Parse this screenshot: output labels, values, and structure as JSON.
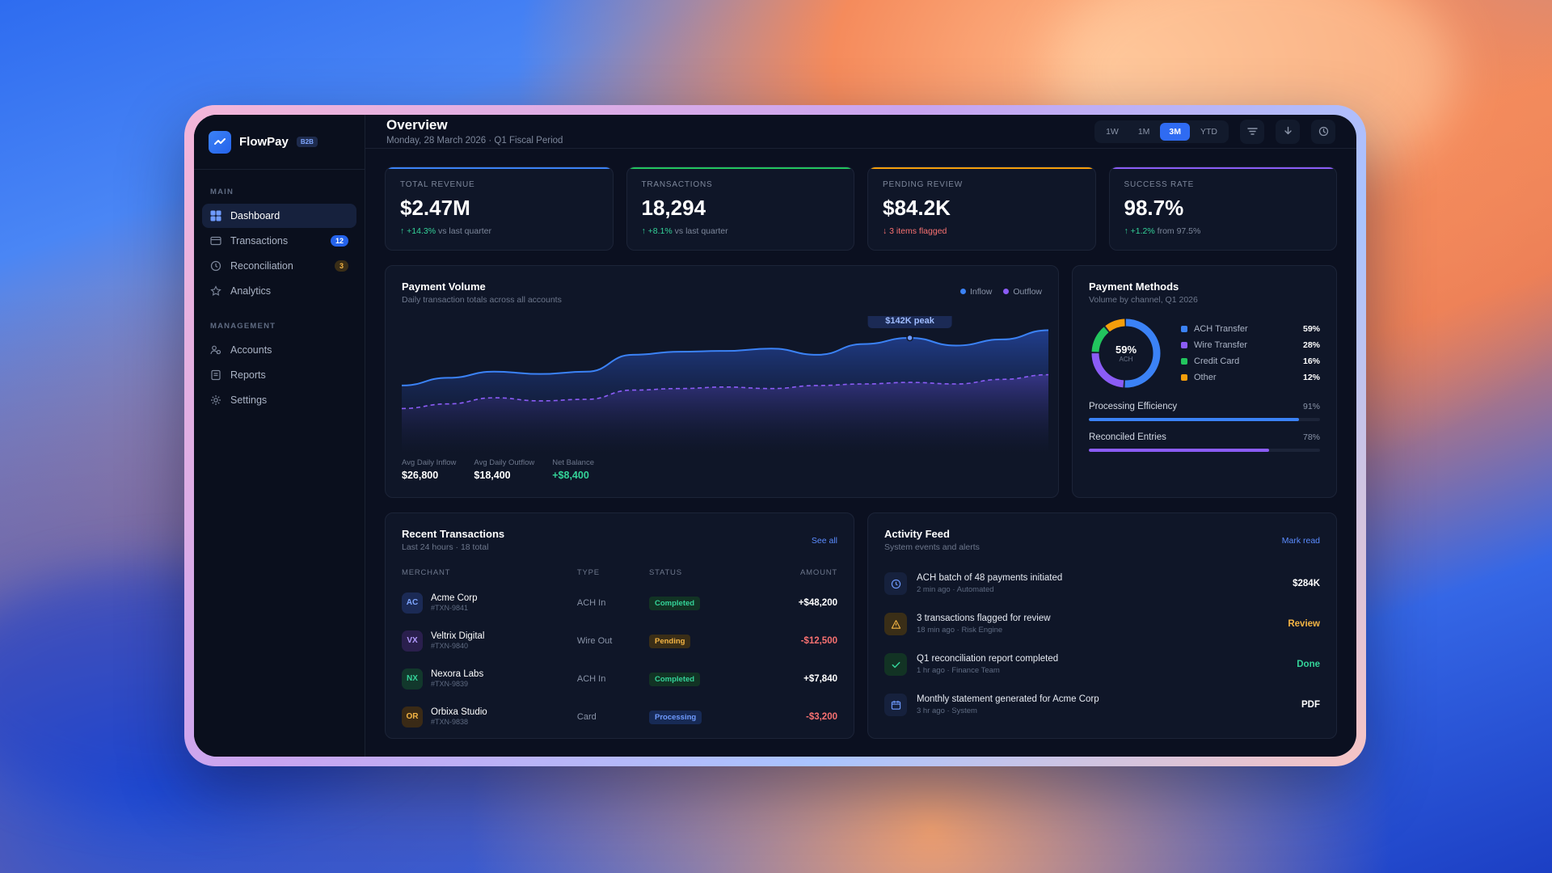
{
  "brand": {
    "name": "FlowPay",
    "tag": "B2B"
  },
  "sidebar": {
    "sections": [
      {
        "label": "MAIN",
        "items": [
          {
            "label": "Dashboard",
            "icon": "grid-icon",
            "active": true
          },
          {
            "label": "Transactions",
            "icon": "card-icon",
            "badge": "12",
            "badge_color": "blue"
          },
          {
            "label": "Reconciliation",
            "icon": "clock-icon",
            "badge": "3",
            "badge_color": "amber"
          },
          {
            "label": "Analytics",
            "icon": "star-icon"
          }
        ]
      },
      {
        "label": "MANAGEMENT",
        "items": [
          {
            "label": "Accounts",
            "icon": "users-icon"
          },
          {
            "label": "Reports",
            "icon": "document-icon"
          },
          {
            "label": "Settings",
            "icon": "gear-icon"
          }
        ]
      }
    ]
  },
  "header": {
    "title": "Overview",
    "date": "Monday, 28 March 2026",
    "period": "Q1 Fiscal Period",
    "ranges": [
      "1W",
      "1M",
      "3M",
      "YTD"
    ],
    "active_range": "3M"
  },
  "kpis": [
    {
      "label": "TOTAL REVENUE",
      "value": "$2.47M",
      "change": "+14.3%",
      "note": "vs last quarter",
      "dir": "up",
      "accent": "#3b82f6"
    },
    {
      "label": "TRANSACTIONS",
      "value": "18,294",
      "change": "+8.1%",
      "note": "vs last quarter",
      "dir": "up",
      "accent": "#22c55e"
    },
    {
      "label": "PENDING REVIEW",
      "value": "$84.2K",
      "change": "3 items flagged",
      "note": "",
      "dir": "down",
      "accent": "#f59e0b"
    },
    {
      "label": "SUCCESS RATE",
      "value": "98.7%",
      "change": "+1.2%",
      "note": "from 97.5%",
      "dir": "up",
      "accent": "#8b5cf6"
    }
  ],
  "volume": {
    "title": "Payment Volume",
    "subtitle": "Daily transaction totals across all accounts",
    "legend": [
      {
        "name": "Inflow",
        "color": "#3b82f6"
      },
      {
        "name": "Outflow",
        "color": "#8b5cf6"
      }
    ],
    "peak_label": "$142K peak",
    "stats": [
      {
        "label": "Avg Daily Inflow",
        "value": "$26,800",
        "color": "#ffffff"
      },
      {
        "label": "Avg Daily Outflow",
        "value": "$18,400",
        "color": "#ffffff"
      },
      {
        "label": "Net Balance",
        "value": "+$8,400",
        "color": "#34d399"
      }
    ]
  },
  "chart_data": {
    "type": "area",
    "series": [
      {
        "name": "Inflow",
        "values": [
          78,
          88,
          96,
          93,
          96,
          118,
          122,
          123,
          126,
          118,
          132,
          140,
          130,
          138,
          150
        ]
      },
      {
        "name": "Outflow",
        "values": [
          48,
          54,
          62,
          58,
          60,
          72,
          74,
          76,
          74,
          78,
          80,
          82,
          80,
          86,
          92
        ]
      }
    ],
    "peak_index": 11
  },
  "methods": {
    "title": "Payment Methods",
    "subtitle": "Volume by channel, Q1 2026",
    "center_value": "59%",
    "center_label": "ACH",
    "items": [
      {
        "name": "ACH Transfer",
        "pct": "59%",
        "value": 59,
        "color": "#3b82f6"
      },
      {
        "name": "Wire Transfer",
        "pct": "28%",
        "value": 28,
        "color": "#8b5cf6"
      },
      {
        "name": "Credit Card",
        "pct": "16%",
        "value": 16,
        "color": "#22c55e"
      },
      {
        "name": "Other",
        "pct": "12%",
        "value": 12,
        "color": "#f59e0b"
      }
    ],
    "progress": [
      {
        "label": "Processing Efficiency",
        "pct": "91%",
        "value": 0.91,
        "color": "#3b82f6"
      },
      {
        "label": "Reconciled Entries",
        "pct": "78%",
        "value": 0.78,
        "color": "#8b5cf6"
      }
    ]
  },
  "recent": {
    "title": "Recent Transactions",
    "subtitle": "Last 24 hours · 18 total",
    "link": "See all",
    "columns": [
      "MERCHANT",
      "TYPE",
      "STATUS",
      "AMOUNT"
    ],
    "rows": [
      {
        "initials": "AC",
        "name": "Acme Corp",
        "id": "#TXN-9841",
        "type": "ACH In",
        "status": "Completed",
        "amount": "+$48,200",
        "av_bg": "#1b2a55",
        "av_fg": "#7fa6ff",
        "st_bg": "#123324",
        "st_fg": "#34d399",
        "amt_color": "#ffffff"
      },
      {
        "initials": "VX",
        "name": "Veltrix Digital",
        "id": "#TXN-9840",
        "type": "Wire Out",
        "status": "Pending",
        "amount": "-$12,500",
        "av_bg": "#2a1f4d",
        "av_fg": "#b49bff",
        "st_bg": "#3a2e17",
        "st_fg": "#f5b544",
        "amt_color": "#f87171"
      },
      {
        "initials": "NX",
        "name": "Nexora Labs",
        "id": "#TXN-9839",
        "type": "ACH In",
        "status": "Completed",
        "amount": "+$7,840",
        "av_bg": "#12382c",
        "av_fg": "#34d399",
        "st_bg": "#123324",
        "st_fg": "#34d399",
        "amt_color": "#ffffff"
      },
      {
        "initials": "OR",
        "name": "Orbixa Studio",
        "id": "#TXN-9838",
        "type": "Card",
        "status": "Processing",
        "amount": "-$3,200",
        "av_bg": "#3a2a16",
        "av_fg": "#f5b544",
        "st_bg": "#172a55",
        "st_fg": "#6f9bff",
        "amt_color": "#f87171"
      }
    ]
  },
  "activity": {
    "title": "Activity Feed",
    "subtitle": "System events and alerts",
    "link": "Mark read",
    "items": [
      {
        "icon": "clock-icon",
        "title": "ACH batch of 48 payments initiated",
        "meta": "2 min ago · Automated",
        "value": "$284K",
        "color": "#ffffff",
        "icon_bg": "#16213d",
        "icon_fg": "#6f9bff"
      },
      {
        "icon": "warning-icon",
        "title": "3 transactions flagged for review",
        "meta": "18 min ago · Risk Engine",
        "value": "Review",
        "color": "#f5b544",
        "icon_bg": "#3a2e17",
        "icon_fg": "#f5b544"
      },
      {
        "icon": "check-icon",
        "title": "Q1 reconciliation report completed",
        "meta": "1 hr ago · Finance Team",
        "value": "Done",
        "color": "#34d399",
        "icon_bg": "#123324",
        "icon_fg": "#34d399"
      },
      {
        "icon": "calendar-icon",
        "title": "Monthly statement generated for Acme Corp",
        "meta": "3 hr ago · System",
        "value": "PDF",
        "color": "#ffffff",
        "icon_bg": "#16213d",
        "icon_fg": "#6f9bff"
      }
    ]
  }
}
